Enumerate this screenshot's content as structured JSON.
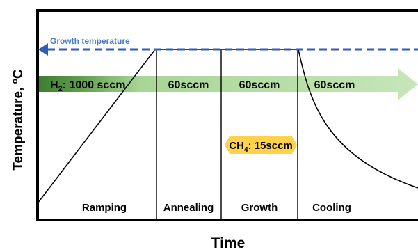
{
  "axes": {
    "y_label_main": "Temperature, ",
    "y_label_sup": "o",
    "y_label_unit": "C",
    "x_label": "Time"
  },
  "growth_temperature": {
    "label": "Growth temperature",
    "color": "#2e5fb0"
  },
  "flow": {
    "h2_symbol": "H",
    "h2_subscript": "2",
    "h2_rate": ": 1000 sccm",
    "rates": [
      "60sccm",
      "60sccm",
      "60sccm"
    ],
    "arrow_color_light": "#c6e6b9",
    "arrow_color_dark": "#3e7d31"
  },
  "ch4": {
    "symbol": "CH",
    "subscript": "4",
    "rate": ": 15sccm",
    "color": "#ffd24a"
  },
  "stages": [
    "Ramping",
    "Annealing",
    "Growth",
    "Cooling"
  ]
}
